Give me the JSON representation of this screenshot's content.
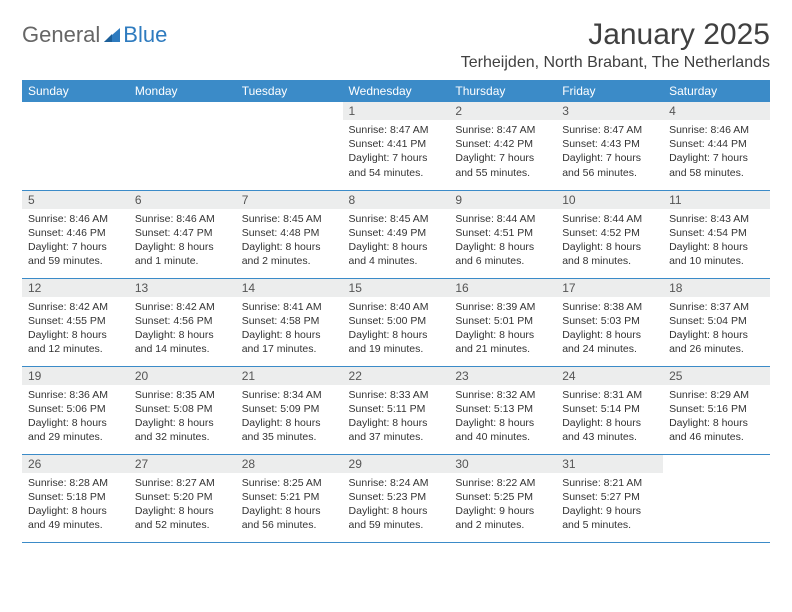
{
  "brand": {
    "part1": "General",
    "part2": "Blue"
  },
  "title": "January 2025",
  "location": "Terheijden, North Brabant, The Netherlands",
  "colors": {
    "header_bg": "#3b8bc8",
    "header_fg": "#ffffff",
    "daynum_bg": "#eceded",
    "row_border": "#3b8bc8",
    "logo_blue": "#2e7bbf",
    "text": "#333333"
  },
  "dayNames": [
    "Sunday",
    "Monday",
    "Tuesday",
    "Wednesday",
    "Thursday",
    "Friday",
    "Saturday"
  ],
  "weeks": [
    [
      {
        "n": "",
        "sr": "",
        "ss": "",
        "dl": ""
      },
      {
        "n": "",
        "sr": "",
        "ss": "",
        "dl": ""
      },
      {
        "n": "",
        "sr": "",
        "ss": "",
        "dl": ""
      },
      {
        "n": "1",
        "sr": "Sunrise: 8:47 AM",
        "ss": "Sunset: 4:41 PM",
        "dl": "Daylight: 7 hours and 54 minutes."
      },
      {
        "n": "2",
        "sr": "Sunrise: 8:47 AM",
        "ss": "Sunset: 4:42 PM",
        "dl": "Daylight: 7 hours and 55 minutes."
      },
      {
        "n": "3",
        "sr": "Sunrise: 8:47 AM",
        "ss": "Sunset: 4:43 PM",
        "dl": "Daylight: 7 hours and 56 minutes."
      },
      {
        "n": "4",
        "sr": "Sunrise: 8:46 AM",
        "ss": "Sunset: 4:44 PM",
        "dl": "Daylight: 7 hours and 58 minutes."
      }
    ],
    [
      {
        "n": "5",
        "sr": "Sunrise: 8:46 AM",
        "ss": "Sunset: 4:46 PM",
        "dl": "Daylight: 7 hours and 59 minutes."
      },
      {
        "n": "6",
        "sr": "Sunrise: 8:46 AM",
        "ss": "Sunset: 4:47 PM",
        "dl": "Daylight: 8 hours and 1 minute."
      },
      {
        "n": "7",
        "sr": "Sunrise: 8:45 AM",
        "ss": "Sunset: 4:48 PM",
        "dl": "Daylight: 8 hours and 2 minutes."
      },
      {
        "n": "8",
        "sr": "Sunrise: 8:45 AM",
        "ss": "Sunset: 4:49 PM",
        "dl": "Daylight: 8 hours and 4 minutes."
      },
      {
        "n": "9",
        "sr": "Sunrise: 8:44 AM",
        "ss": "Sunset: 4:51 PM",
        "dl": "Daylight: 8 hours and 6 minutes."
      },
      {
        "n": "10",
        "sr": "Sunrise: 8:44 AM",
        "ss": "Sunset: 4:52 PM",
        "dl": "Daylight: 8 hours and 8 minutes."
      },
      {
        "n": "11",
        "sr": "Sunrise: 8:43 AM",
        "ss": "Sunset: 4:54 PM",
        "dl": "Daylight: 8 hours and 10 minutes."
      }
    ],
    [
      {
        "n": "12",
        "sr": "Sunrise: 8:42 AM",
        "ss": "Sunset: 4:55 PM",
        "dl": "Daylight: 8 hours and 12 minutes."
      },
      {
        "n": "13",
        "sr": "Sunrise: 8:42 AM",
        "ss": "Sunset: 4:56 PM",
        "dl": "Daylight: 8 hours and 14 minutes."
      },
      {
        "n": "14",
        "sr": "Sunrise: 8:41 AM",
        "ss": "Sunset: 4:58 PM",
        "dl": "Daylight: 8 hours and 17 minutes."
      },
      {
        "n": "15",
        "sr": "Sunrise: 8:40 AM",
        "ss": "Sunset: 5:00 PM",
        "dl": "Daylight: 8 hours and 19 minutes."
      },
      {
        "n": "16",
        "sr": "Sunrise: 8:39 AM",
        "ss": "Sunset: 5:01 PM",
        "dl": "Daylight: 8 hours and 21 minutes."
      },
      {
        "n": "17",
        "sr": "Sunrise: 8:38 AM",
        "ss": "Sunset: 5:03 PM",
        "dl": "Daylight: 8 hours and 24 minutes."
      },
      {
        "n": "18",
        "sr": "Sunrise: 8:37 AM",
        "ss": "Sunset: 5:04 PM",
        "dl": "Daylight: 8 hours and 26 minutes."
      }
    ],
    [
      {
        "n": "19",
        "sr": "Sunrise: 8:36 AM",
        "ss": "Sunset: 5:06 PM",
        "dl": "Daylight: 8 hours and 29 minutes."
      },
      {
        "n": "20",
        "sr": "Sunrise: 8:35 AM",
        "ss": "Sunset: 5:08 PM",
        "dl": "Daylight: 8 hours and 32 minutes."
      },
      {
        "n": "21",
        "sr": "Sunrise: 8:34 AM",
        "ss": "Sunset: 5:09 PM",
        "dl": "Daylight: 8 hours and 35 minutes."
      },
      {
        "n": "22",
        "sr": "Sunrise: 8:33 AM",
        "ss": "Sunset: 5:11 PM",
        "dl": "Daylight: 8 hours and 37 minutes."
      },
      {
        "n": "23",
        "sr": "Sunrise: 8:32 AM",
        "ss": "Sunset: 5:13 PM",
        "dl": "Daylight: 8 hours and 40 minutes."
      },
      {
        "n": "24",
        "sr": "Sunrise: 8:31 AM",
        "ss": "Sunset: 5:14 PM",
        "dl": "Daylight: 8 hours and 43 minutes."
      },
      {
        "n": "25",
        "sr": "Sunrise: 8:29 AM",
        "ss": "Sunset: 5:16 PM",
        "dl": "Daylight: 8 hours and 46 minutes."
      }
    ],
    [
      {
        "n": "26",
        "sr": "Sunrise: 8:28 AM",
        "ss": "Sunset: 5:18 PM",
        "dl": "Daylight: 8 hours and 49 minutes."
      },
      {
        "n": "27",
        "sr": "Sunrise: 8:27 AM",
        "ss": "Sunset: 5:20 PM",
        "dl": "Daylight: 8 hours and 52 minutes."
      },
      {
        "n": "28",
        "sr": "Sunrise: 8:25 AM",
        "ss": "Sunset: 5:21 PM",
        "dl": "Daylight: 8 hours and 56 minutes."
      },
      {
        "n": "29",
        "sr": "Sunrise: 8:24 AM",
        "ss": "Sunset: 5:23 PM",
        "dl": "Daylight: 8 hours and 59 minutes."
      },
      {
        "n": "30",
        "sr": "Sunrise: 8:22 AM",
        "ss": "Sunset: 5:25 PM",
        "dl": "Daylight: 9 hours and 2 minutes."
      },
      {
        "n": "31",
        "sr": "Sunrise: 8:21 AM",
        "ss": "Sunset: 5:27 PM",
        "dl": "Daylight: 9 hours and 5 minutes."
      },
      {
        "n": "",
        "sr": "",
        "ss": "",
        "dl": ""
      }
    ]
  ]
}
